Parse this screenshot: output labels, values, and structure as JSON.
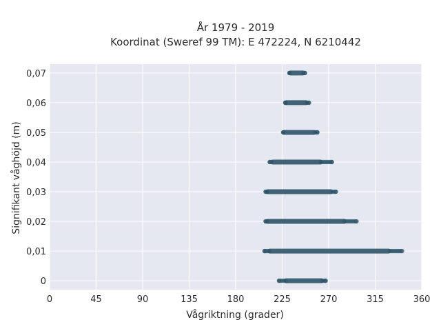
{
  "chart_data": {
    "type": "scatter",
    "title_line1": "År 1979 - 2019",
    "title_line2": "Koordinat (Sweref 99 TM): E 472224, N 6210442",
    "xlabel": "Vågriktning (grader)",
    "ylabel": "Signifikant våghöjd (m)",
    "xlim": [
      0,
      360
    ],
    "ylim": [
      -0.003,
      0.073
    ],
    "x_ticks": [
      0,
      45,
      90,
      135,
      180,
      225,
      270,
      315,
      360
    ],
    "y_ticks": [
      0,
      0.01,
      0.02,
      0.03,
      0.04,
      0.05,
      0.06,
      0.07
    ],
    "y_tick_labels": [
      "0",
      "0,01",
      "0,02",
      "0,03",
      "0,04",
      "0,05",
      "0,06",
      "0,07"
    ],
    "grid": true,
    "marker_color": "#2e5468",
    "background_color": "#e5e8f0",
    "series": [
      {
        "bands": [
          {
            "y": 0,
            "x_min": 222,
            "x_max": 267,
            "dense_min": 229,
            "dense_max": 263
          },
          {
            "y": 0.01,
            "x_min": 208,
            "x_max": 341,
            "dense_min": 213,
            "dense_max": 328
          },
          {
            "y": 0.02,
            "x_min": 209,
            "x_max": 297,
            "dense_min": 211,
            "dense_max": 285
          },
          {
            "y": 0.03,
            "x_min": 209,
            "x_max": 277,
            "dense_min": 211,
            "dense_max": 272
          },
          {
            "y": 0.04,
            "x_min": 213,
            "x_max": 273,
            "dense_min": 216,
            "dense_max": 262
          },
          {
            "y": 0.05,
            "x_min": 226,
            "x_max": 259,
            "dense_min": 227,
            "dense_max": 256
          },
          {
            "y": 0.06,
            "x_min": 228,
            "x_max": 251,
            "dense_min": 229,
            "dense_max": 248
          },
          {
            "y": 0.07,
            "x_min": 232,
            "x_max": 247,
            "dense_min": 233,
            "dense_max": 245
          }
        ]
      }
    ]
  }
}
